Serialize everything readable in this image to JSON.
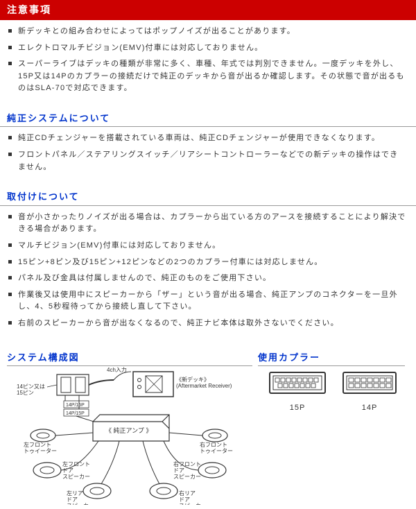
{
  "headers": {
    "caution": "注意事項",
    "system": "純正システムについて",
    "install": "取付けについて",
    "diagram": "システム構成図",
    "coupler": "使用カプラー"
  },
  "caution_items": [
    "新デッキとの組み合わせによってはポップノイズが出ることがあります。",
    "エレクトロマルチビジョン(EMV)付車には対応しておりません。",
    "スーパーライブはデッキの種類が非常に多く、車種、年式では判別できません。一度デッキを外し、15P又は14Pのカプラーの接続だけで純正のデッキから音が出るか確認します。その状態で音が出るものはSLA-70で対応できます。"
  ],
  "system_items": [
    "純正CDチェンジャーを搭載されている車両は、純正CDチェンジャーが使用できなくなります。",
    "フロントパネル／ステアリングスイッチ／リアシートコントローラーなどでの新デッキの操作はできません。"
  ],
  "install_items": [
    "音が小さかったりノイズが出る場合は、カプラーから出ている方のアースを接続することにより解決できる場合があります。",
    "マルチビジョン(EMV)付車には対応しておりません。",
    "15ピン+8ピン及び15ピン+12ピンなどの2つのカプラー付車には対応しません。",
    "パネル及び金具は付属しませんので、純正のものをご使用下さい。",
    "作業後又は使用中にスピーカーから「ザー」という音が出る場合、純正アンプのコネクターを一旦外し、4、5秒程待ってから接続し直して下さい。",
    "右前のスピーカーから音が出なくなるので、純正ナビ本体は取外さないでください。"
  ],
  "diagram_labels": {
    "pin_note": "14ピン又は\n15ピン",
    "p1": "14P/15P",
    "p2": "14P/15P",
    "ch4": "4ch入力",
    "newdeck": "《新デッキ》\n(Aftermarket Receiver)",
    "amp": "《 純正アンプ 》",
    "lf_tw": "左フロント\nトゥイーター",
    "rf_tw": "右フロント\nトゥイーター",
    "lf_sp": "左フロント\nドア\nスピーカー",
    "rf_sp": "右フロント\nドア\nスピーカー",
    "lr_sp": "左リア\nドア\nスピーカー",
    "rr_sp": "右リア\nドア\nスピーカー"
  },
  "couplers": {
    "left": "15P",
    "right": "14P"
  },
  "colors": {
    "red": "#cc0000",
    "blue": "#0033cc",
    "line": "#333333"
  }
}
